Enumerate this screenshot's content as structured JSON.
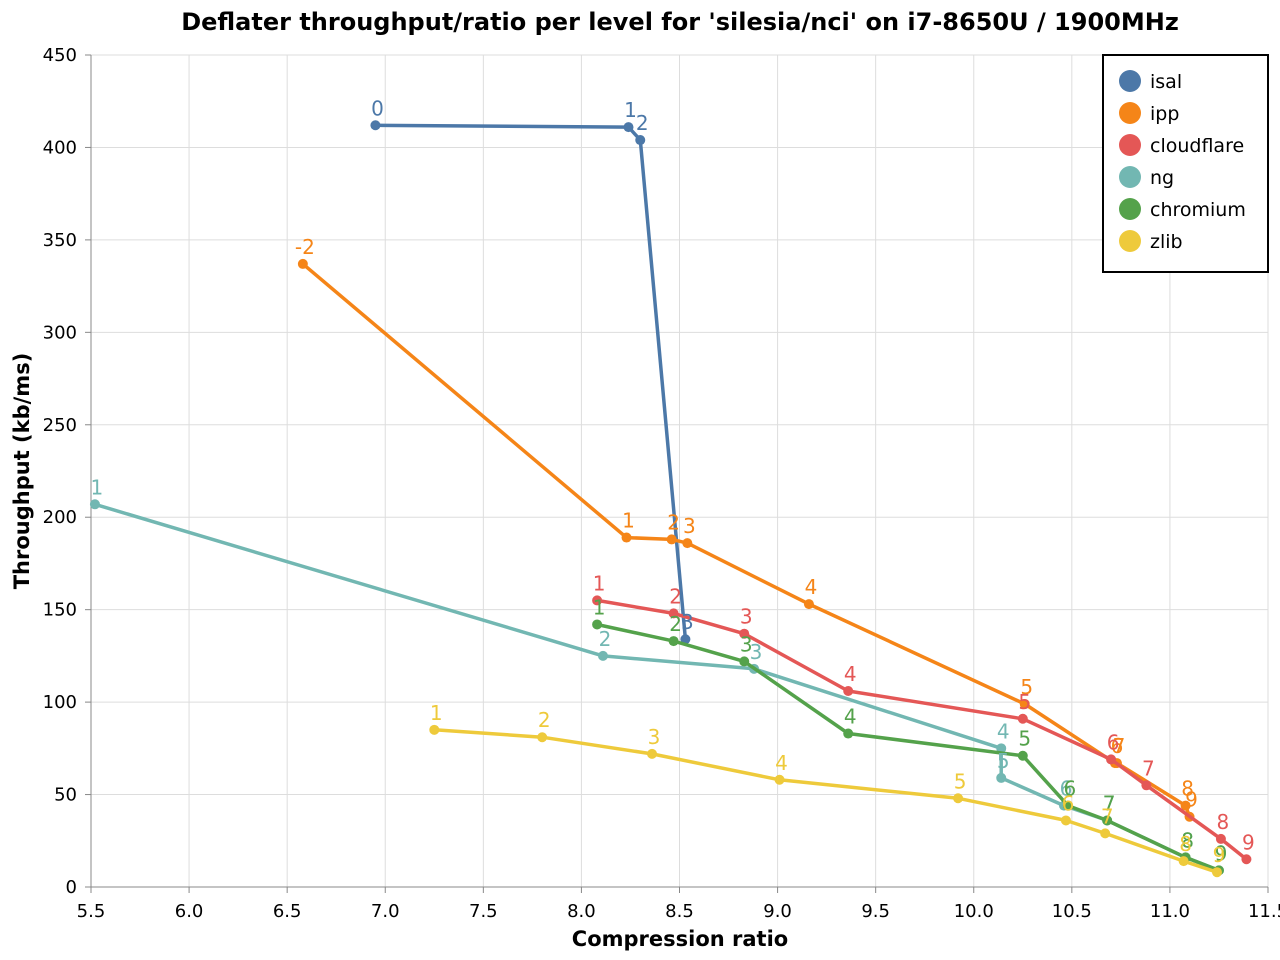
{
  "chart_data": {
    "type": "line",
    "title": "Deflater throughput/ratio per level for 'silesia/nci' on i7-8650U / 1900MHz",
    "xlabel": "Compression ratio",
    "ylabel": "Throughput (kb/ms)",
    "xlim": [
      5.5,
      11.5
    ],
    "ylim": [
      0,
      450
    ],
    "x_ticks": [
      "5.5",
      "6.0",
      "6.5",
      "7.0",
      "7.5",
      "8.0",
      "8.5",
      "9.0",
      "9.5",
      "10.0",
      "10.5",
      "11.0",
      "11.5"
    ],
    "y_ticks": [
      "0",
      "50",
      "100",
      "150",
      "200",
      "250",
      "300",
      "350",
      "400",
      "450"
    ],
    "grid": true,
    "legend_position": "top-right",
    "series": [
      {
        "name": "isal",
        "color": "#4c78a8",
        "points": [
          {
            "x": 6.95,
            "y": 412,
            "label": "0"
          },
          {
            "x": 8.24,
            "y": 411,
            "label": "1"
          },
          {
            "x": 8.3,
            "y": 404,
            "label": "2"
          },
          {
            "x": 8.53,
            "y": 134,
            "label": "3"
          }
        ]
      },
      {
        "name": "ipp",
        "color": "#f58518",
        "points": [
          {
            "x": 6.58,
            "y": 337,
            "label": "-2"
          },
          {
            "x": 8.23,
            "y": 189,
            "label": "1"
          },
          {
            "x": 8.46,
            "y": 188,
            "label": "2"
          },
          {
            "x": 8.54,
            "y": 186,
            "label": "3"
          },
          {
            "x": 9.16,
            "y": 153,
            "label": "4"
          },
          {
            "x": 10.26,
            "y": 99,
            "label": "5"
          },
          {
            "x": 10.72,
            "y": 67,
            "label": "6"
          },
          {
            "x": 10.73,
            "y": 67,
            "label": "7"
          },
          {
            "x": 11.08,
            "y": 44,
            "label": "8"
          },
          {
            "x": 11.1,
            "y": 38,
            "label": "9"
          }
        ]
      },
      {
        "name": "cloudflare",
        "color": "#e45756",
        "points": [
          {
            "x": 8.08,
            "y": 155,
            "label": "1"
          },
          {
            "x": 8.47,
            "y": 148,
            "label": "2"
          },
          {
            "x": 8.83,
            "y": 137,
            "label": "3"
          },
          {
            "x": 9.36,
            "y": 106,
            "label": "4"
          },
          {
            "x": 10.25,
            "y": 91,
            "label": "5"
          },
          {
            "x": 10.7,
            "y": 69,
            "label": "6"
          },
          {
            "x": 10.88,
            "y": 55,
            "label": "7"
          },
          {
            "x": 11.26,
            "y": 26,
            "label": "8"
          },
          {
            "x": 11.39,
            "y": 15,
            "label": "9"
          }
        ]
      },
      {
        "name": "ng",
        "color": "#72b7b2",
        "points": [
          {
            "x": 5.52,
            "y": 207,
            "label": "1"
          },
          {
            "x": 8.11,
            "y": 125,
            "label": "2"
          },
          {
            "x": 8.88,
            "y": 118,
            "label": "3"
          },
          {
            "x": 10.14,
            "y": 75,
            "label": "4"
          },
          {
            "x": 10.14,
            "y": 59,
            "label": "5"
          },
          {
            "x": 10.46,
            "y": 44,
            "label": "6"
          },
          {
            "x": 10.68,
            "y": 36,
            "label": "7"
          },
          {
            "x": 11.08,
            "y": 16,
            "label": "8"
          },
          {
            "x": 11.25,
            "y": 9,
            "label": "9"
          }
        ]
      },
      {
        "name": "chromium",
        "color": "#54a24b",
        "points": [
          {
            "x": 8.08,
            "y": 142,
            "label": "1"
          },
          {
            "x": 8.47,
            "y": 133,
            "label": "2"
          },
          {
            "x": 8.83,
            "y": 122,
            "label": "3"
          },
          {
            "x": 9.36,
            "y": 83,
            "label": "4"
          },
          {
            "x": 10.25,
            "y": 71,
            "label": "5"
          },
          {
            "x": 10.48,
            "y": 44,
            "label": "6"
          },
          {
            "x": 10.68,
            "y": 36,
            "label": "7"
          },
          {
            "x": 11.08,
            "y": 16,
            "label": "8"
          },
          {
            "x": 11.25,
            "y": 9,
            "label": "9"
          }
        ]
      },
      {
        "name": "zlib",
        "color": "#eeca3b",
        "points": [
          {
            "x": 7.25,
            "y": 85,
            "label": "1"
          },
          {
            "x": 7.8,
            "y": 81,
            "label": "2"
          },
          {
            "x": 8.36,
            "y": 72,
            "label": "3"
          },
          {
            "x": 9.01,
            "y": 58,
            "label": "4"
          },
          {
            "x": 9.92,
            "y": 48,
            "label": "5"
          },
          {
            "x": 10.47,
            "y": 36,
            "label": "6"
          },
          {
            "x": 10.67,
            "y": 29,
            "label": "7"
          },
          {
            "x": 11.07,
            "y": 14,
            "label": "8"
          },
          {
            "x": 11.24,
            "y": 8,
            "label": "9"
          }
        ]
      }
    ]
  }
}
